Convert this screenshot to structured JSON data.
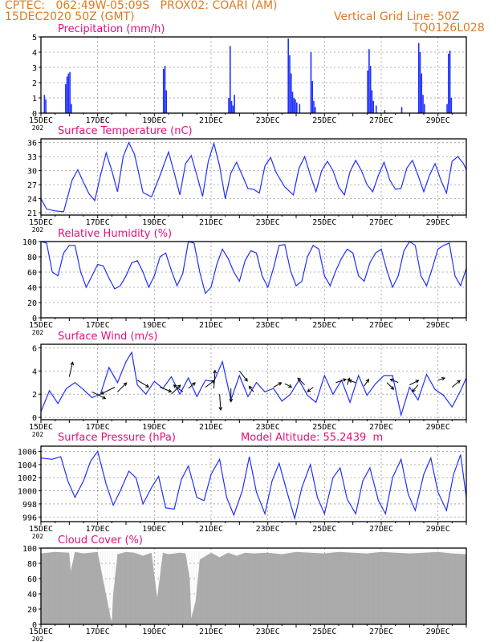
{
  "header": {
    "line1": "CPTEC:   062:49W-05:09S   PROX02: COARI (AM)",
    "line2_left": "15DEC2020 50Z (GMT)",
    "line2_right": "Vertical Grid Line: 50Z",
    "line3_right": "TQ0126L028"
  },
  "colors": {
    "header": "#e07a1f",
    "title": "#e0107a",
    "series": "#1f2fff",
    "cloud": "#a9a9a9",
    "axis": "#000000"
  },
  "x_axis": {
    "tick_labels": [
      "15DEC",
      "17DEC",
      "19DEC",
      "21DEC",
      "23DEC",
      "25DEC",
      "27DEC",
      "29DEC"
    ],
    "year_fragment": "202"
  },
  "chart_data": [
    {
      "type": "bar",
      "title": "Precipitation (mm/h)",
      "ylim": [
        0,
        5
      ],
      "y_ticks": [
        0,
        1,
        2,
        3,
        4,
        5
      ],
      "x_range_days": [
        0,
        15
      ],
      "bars": [
        [
          0.1,
          1.2
        ],
        [
          0.15,
          0.9
        ],
        [
          0.85,
          1.9
        ],
        [
          0.9,
          2.4
        ],
        [
          0.95,
          2.6
        ],
        [
          1.0,
          2.7
        ],
        [
          1.05,
          0.6
        ],
        [
          4.3,
          2.9
        ],
        [
          4.35,
          3.1
        ],
        [
          4.4,
          1.5
        ],
        [
          6.6,
          1.0
        ],
        [
          6.65,
          4.4
        ],
        [
          6.7,
          0.8
        ],
        [
          6.75,
          0.5
        ],
        [
          6.8,
          1.2
        ],
        [
          8.7,
          4.9
        ],
        [
          8.75,
          3.8
        ],
        [
          8.8,
          2.6
        ],
        [
          8.85,
          1.4
        ],
        [
          8.9,
          1.0
        ],
        [
          8.95,
          0.9
        ],
        [
          9.0,
          0.7
        ],
        [
          9.1,
          0.6
        ],
        [
          9.5,
          4.0
        ],
        [
          9.55,
          2.1
        ],
        [
          9.6,
          0.8
        ],
        [
          9.65,
          0.4
        ],
        [
          11.5,
          2.8
        ],
        [
          11.55,
          4.2
        ],
        [
          11.6,
          3.1
        ],
        [
          11.65,
          1.5
        ],
        [
          11.7,
          0.8
        ],
        [
          11.8,
          0.5
        ],
        [
          12.1,
          0.2
        ],
        [
          12.7,
          0.4
        ],
        [
          13.3,
          4.6
        ],
        [
          13.35,
          4.0
        ],
        [
          13.4,
          2.6
        ],
        [
          13.45,
          1.2
        ],
        [
          13.5,
          0.6
        ],
        [
          14.3,
          0.6
        ],
        [
          14.35,
          3.9
        ],
        [
          14.4,
          4.1
        ],
        [
          14.45,
          1.0
        ]
      ]
    },
    {
      "type": "line",
      "title": "Surface Temperature (nC)",
      "ylim": [
        20.5,
        36.8
      ],
      "y_ticks": [
        21,
        24,
        27,
        30,
        33,
        36
      ],
      "x": [
        0,
        0.2,
        0.5,
        0.8,
        1.1,
        1.3,
        1.5,
        1.7,
        1.9,
        2.1,
        2.3,
        2.5,
        2.7,
        2.9,
        3.1,
        3.3,
        3.6,
        3.9,
        4.2,
        4.5,
        4.7,
        4.9,
        5.1,
        5.3,
        5.5,
        5.7,
        5.9,
        6.1,
        6.3,
        6.5,
        6.7,
        6.9,
        7.1,
        7.3,
        7.5,
        7.7,
        7.9,
        8.1,
        8.3,
        8.6,
        8.9,
        9.1,
        9.3,
        9.5,
        9.7,
        9.9,
        10.1,
        10.3,
        10.5,
        10.7,
        10.9,
        11.1,
        11.3,
        11.5,
        11.7,
        11.9,
        12.1,
        12.3,
        12.5,
        12.7,
        12.9,
        13.1,
        13.3,
        13.5,
        13.7,
        13.9,
        14.1,
        14.3,
        14.5,
        14.7,
        14.9,
        15.0
      ],
      "values": [
        24,
        21.8,
        21.4,
        21.2,
        28,
        30.2,
        27.5,
        25,
        23.6,
        29,
        33.8,
        30,
        25.5,
        33,
        36,
        33.5,
        25.3,
        24.4,
        29,
        34,
        29.5,
        24.8,
        31.5,
        33.2,
        29,
        24.5,
        32,
        35.8,
        31,
        24,
        29.5,
        31.8,
        29,
        26.2,
        26,
        25.2,
        31,
        32.8,
        29.5,
        26.5,
        24.8,
        30.5,
        33,
        29,
        25.5,
        30,
        32,
        30,
        26.5,
        24.8,
        29.8,
        32.2,
        30,
        27,
        25.5,
        29,
        31.8,
        28,
        26,
        26.2,
        30.5,
        32.2,
        29,
        25.5,
        29,
        31.5,
        28,
        25.2,
        32,
        33,
        31.5,
        30.2
      ]
    },
    {
      "type": "line",
      "title": "Relative Humidity (%)",
      "ylim": [
        0,
        100
      ],
      "y_ticks": [
        0,
        20,
        40,
        60,
        80,
        100
      ],
      "x": [
        0,
        0.2,
        0.4,
        0.6,
        0.8,
        1.0,
        1.2,
        1.4,
        1.6,
        1.8,
        2.0,
        2.2,
        2.4,
        2.6,
        2.8,
        3.0,
        3.2,
        3.4,
        3.6,
        3.8,
        4.0,
        4.2,
        4.4,
        4.6,
        4.8,
        5.0,
        5.2,
        5.4,
        5.6,
        5.8,
        6.0,
        6.2,
        6.4,
        6.6,
        6.8,
        7.0,
        7.2,
        7.4,
        7.6,
        7.8,
        8.0,
        8.2,
        8.4,
        8.6,
        8.8,
        9.0,
        9.2,
        9.4,
        9.6,
        9.8,
        10.0,
        10.2,
        10.4,
        10.6,
        10.8,
        11.0,
        11.2,
        11.4,
        11.6,
        11.8,
        12.0,
        12.2,
        12.4,
        12.6,
        12.8,
        13.0,
        13.2,
        13.4,
        13.6,
        13.8,
        14.0,
        14.2,
        14.4,
        14.6,
        14.8,
        15.0
      ],
      "values": [
        100,
        98,
        60,
        55,
        85,
        95,
        95,
        60,
        40,
        55,
        70,
        68,
        52,
        38,
        42,
        55,
        72,
        75,
        60,
        40,
        55,
        80,
        85,
        62,
        42,
        58,
        100,
        98,
        60,
        32,
        40,
        70,
        90,
        78,
        60,
        48,
        75,
        88,
        85,
        55,
        40,
        65,
        95,
        96,
        62,
        42,
        48,
        80,
        95,
        90,
        55,
        42,
        62,
        78,
        90,
        85,
        55,
        48,
        72,
        85,
        90,
        62,
        40,
        55,
        88,
        100,
        95,
        55,
        42,
        65,
        90,
        95,
        98,
        55,
        42,
        65
      ]
    },
    {
      "type": "line",
      "title": "Surface Wind (m/s)",
      "ylim": [
        -0.2,
        6.3
      ],
      "y_ticks": [
        0,
        2,
        4,
        6
      ],
      "x": [
        0,
        0.3,
        0.6,
        0.9,
        1.2,
        1.5,
        1.8,
        2.1,
        2.4,
        2.7,
        3.0,
        3.2,
        3.4,
        3.7,
        4.0,
        4.3,
        4.6,
        4.9,
        5.2,
        5.5,
        5.8,
        6.1,
        6.4,
        6.7,
        7.0,
        7.3,
        7.6,
        7.9,
        8.2,
        8.5,
        8.8,
        9.1,
        9.4,
        9.7,
        10.0,
        10.3,
        10.6,
        10.9,
        11.2,
        11.5,
        11.8,
        12.1,
        12.4,
        12.7,
        13.0,
        13.3,
        13.6,
        13.9,
        14.2,
        14.5,
        14.8,
        15.0
      ],
      "values": [
        0.5,
        2.3,
        1.2,
        2.5,
        3.0,
        2.4,
        1.7,
        2.0,
        4.3,
        3.0,
        4.8,
        5.6,
        2.8,
        2.0,
        3.1,
        2.5,
        3.5,
        2.0,
        3.4,
        1.8,
        3.2,
        3.1,
        4.8,
        1.5,
        3.6,
        1.8,
        3.0,
        2.2,
        2.5,
        1.4,
        2.0,
        3.2,
        1.9,
        1.3,
        3.6,
        2.0,
        3.2,
        1.3,
        3.6,
        1.9,
        2.9,
        3.6,
        3.6,
        0.2,
        2.6,
        1.5,
        3.7,
        2.4,
        1.9,
        0.9,
        2.3,
        3.4
      ]
    },
    {
      "type": "line",
      "title": "Surface Pressure (hPa)",
      "annotation": "Model Altitude: 55.2439  m",
      "ylim": [
        995.3,
        1006.8
      ],
      "y_ticks": [
        996,
        998,
        1000,
        1002,
        1004,
        1006
      ],
      "x": [
        0,
        0.4,
        0.7,
        0.95,
        1.2,
        1.5,
        1.75,
        2.0,
        2.3,
        2.55,
        2.8,
        3.1,
        3.35,
        3.6,
        3.9,
        4.15,
        4.4,
        4.7,
        4.95,
        5.2,
        5.5,
        5.75,
        6.0,
        6.3,
        6.55,
        6.8,
        7.1,
        7.35,
        7.6,
        7.9,
        8.15,
        8.4,
        8.7,
        8.95,
        9.2,
        9.5,
        9.75,
        10.0,
        10.3,
        10.55,
        10.8,
        11.1,
        11.35,
        11.6,
        11.9,
        12.15,
        12.4,
        12.7,
        12.95,
        13.2,
        13.5,
        13.75,
        14.0,
        14.3,
        14.55,
        14.8,
        15.0
      ],
      "values": [
        1005,
        1004.8,
        1005.2,
        1001.5,
        999,
        1001.5,
        1004.5,
        1006,
        1001,
        997.8,
        1000,
        1003,
        1002,
        998,
        1000.5,
        1002.2,
        997.4,
        997.2,
        1001.7,
        1003.8,
        999,
        998.5,
        1002.5,
        1004.8,
        999,
        996.3,
        1000,
        1005.2,
        999.8,
        996.5,
        1001.5,
        1004.2,
        999.5,
        995.8,
        1000.5,
        1004,
        999,
        996.5,
        1002,
        1003.5,
        998.7,
        996.5,
        1001.5,
        1003.5,
        998.5,
        996.5,
        1002,
        1004.8,
        999.5,
        997,
        1002.5,
        1005,
        999.8,
        997,
        1002.5,
        1005.5,
        999
      ]
    },
    {
      "type": "area",
      "title": "Cloud Cover (%)",
      "ylim": [
        0,
        100
      ],
      "y_ticks": [
        0,
        20,
        40,
        60,
        80,
        100
      ],
      "x": [
        0,
        0.5,
        1.0,
        1.05,
        1.2,
        1.5,
        2.0,
        2.45,
        2.5,
        2.55,
        2.7,
        3.0,
        3.3,
        3.6,
        3.9,
        4.1,
        4.3,
        4.5,
        4.9,
        5.1,
        5.25,
        5.3,
        5.45,
        5.6,
        6.0,
        6.3,
        6.6,
        6.9,
        7.2,
        7.5,
        8.0,
        8.5,
        9.0,
        9.5,
        10.0,
        10.5,
        11.0,
        11.5,
        12.0,
        12.5,
        13.0,
        13.5,
        14.0,
        14.5,
        15.0
      ],
      "values": [
        93,
        95,
        94,
        70,
        95,
        93,
        95,
        10,
        4,
        40,
        92,
        95,
        94,
        90,
        94,
        35,
        94,
        92,
        94,
        93,
        60,
        8,
        30,
        85,
        94,
        88,
        94,
        90,
        94,
        93,
        94,
        92,
        95,
        94,
        93,
        95,
        94,
        93,
        95,
        94,
        93,
        94,
        95,
        93,
        92
      ]
    }
  ]
}
